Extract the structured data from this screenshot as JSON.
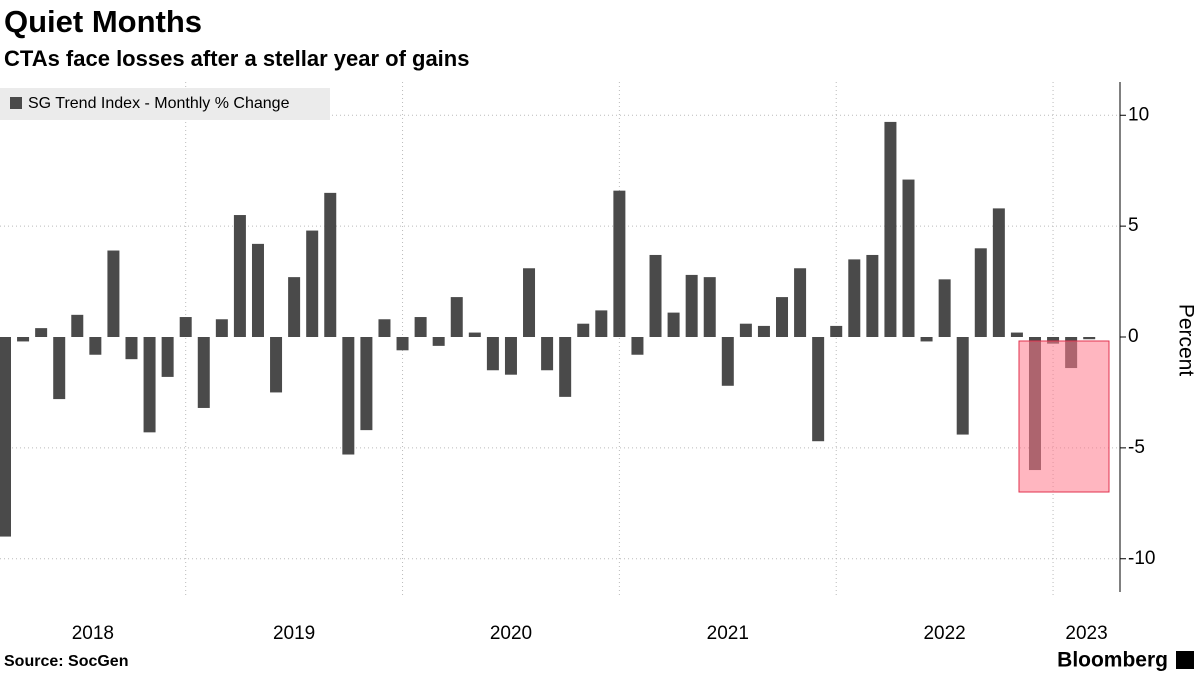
{
  "chart_data": {
    "type": "bar",
    "title": "Quiet Months",
    "subtitle": "CTAs face losses after a stellar year of gains",
    "legend": "SG Trend Index - Monthly % Change",
    "y_label": "Percent",
    "source": "Source: SocGen",
    "brand": "Bloomberg",
    "color": "#4a4a4a",
    "year_labels": [
      "2018",
      "2019",
      "2020",
      "2021",
      "2022",
      "2023"
    ],
    "categories": [
      null,
      null,
      null,
      null,
      null,
      null,
      null,
      null,
      null,
      null,
      null,
      null,
      null,
      null,
      null,
      null,
      null,
      null,
      null,
      null,
      null,
      null,
      null,
      null,
      null,
      null,
      null,
      null,
      null,
      null,
      null,
      null,
      null,
      null,
      null,
      null,
      null,
      null,
      null,
      null,
      null,
      null,
      null,
      null,
      null,
      null,
      null,
      null,
      null,
      null,
      null,
      null,
      null,
      null,
      null,
      null,
      null,
      null,
      null,
      null,
      null
    ],
    "values": [
      -9.0,
      -0.2,
      0.4,
      -2.8,
      1.0,
      -0.8,
      3.9,
      -1.0,
      -4.3,
      -1.8,
      0.9,
      -3.2,
      0.8,
      5.5,
      4.2,
      -2.5,
      2.7,
      4.8,
      6.5,
      -5.3,
      -4.2,
      0.8,
      -0.6,
      0.9,
      -0.4,
      1.8,
      0.2,
      -1.5,
      -1.7,
      3.1,
      -1.5,
      -2.7,
      0.6,
      1.2,
      6.6,
      -0.8,
      3.7,
      1.1,
      2.8,
      2.7,
      -2.2,
      0.6,
      0.5,
      1.8,
      3.1,
      -4.7,
      0.5,
      3.5,
      3.7,
      9.7,
      7.1,
      -0.2,
      2.6,
      -4.4,
      4.0,
      5.8,
      0.2,
      -6.0,
      -0.3,
      -1.4,
      -0.1
    ],
    "ylim": [
      -11.5,
      11.5
    ],
    "yticks": [
      -10,
      -5,
      0,
      5,
      10
    ],
    "grid": true
  }
}
